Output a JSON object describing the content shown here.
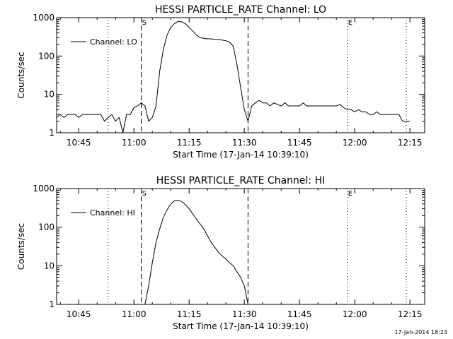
{
  "chart_data": [
    {
      "type": "line",
      "title": "HESSI PARTICLE_RATE Channel: LO",
      "xlabel": "Start Time (17-Jan-14 10:39:10)",
      "ylabel": "Counts/sec",
      "yscale": "log",
      "xlim": [
        "10:39",
        "12:19"
      ],
      "ylim": [
        1,
        1000
      ],
      "x_ticks": [
        "10:45",
        "11:00",
        "11:15",
        "11:30",
        "11:45",
        "12:00",
        "12:15"
      ],
      "y_ticks": [
        "1",
        "10",
        "100",
        "1000"
      ],
      "legend": "upper-left",
      "markers": [
        {
          "time": "10:53",
          "style": "dotted",
          "label": ""
        },
        {
          "time": "11:02",
          "style": "dashed",
          "label": "S"
        },
        {
          "time": "11:31",
          "style": "dashed",
          "label": ""
        },
        {
          "time": "11:58",
          "style": "dotted",
          "label": "E"
        },
        {
          "time": "12:14",
          "style": "dotted",
          "label": ""
        }
      ],
      "series": [
        {
          "name": "Channel: LO",
          "x": [
            "10:39",
            "10:40",
            "10:41",
            "10:42",
            "10:43",
            "10:44",
            "10:45",
            "10:46",
            "10:47",
            "10:48",
            "10:49",
            "10:50",
            "10:51",
            "10:52",
            "10:53",
            "10:54",
            "10:55",
            "10:56",
            "10:57",
            "10:58",
            "10:59",
            "11:00",
            "11:01",
            "11:02",
            "11:03",
            "11:04",
            "11:05",
            "11:06",
            "11:07",
            "11:08",
            "11:09",
            "11:10",
            "11:11",
            "11:12",
            "11:13",
            "11:14",
            "11:15",
            "11:16",
            "11:17",
            "11:18",
            "11:19",
            "11:20",
            "11:21",
            "11:22",
            "11:23",
            "11:24",
            "11:25",
            "11:26",
            "11:27",
            "11:28",
            "11:29",
            "11:30",
            "11:31",
            "11:32",
            "11:33",
            "11:34",
            "11:35",
            "11:36",
            "11:37",
            "11:38",
            "11:39",
            "11:40",
            "11:41",
            "11:42",
            "11:43",
            "11:44",
            "11:45",
            "11:46",
            "11:47",
            "11:48",
            "11:49",
            "11:50",
            "11:51",
            "11:52",
            "11:53",
            "11:54",
            "11:55",
            "11:56",
            "11:57",
            "11:58",
            "11:59",
            "12:00",
            "12:01",
            "12:02",
            "12:03",
            "12:04",
            "12:05",
            "12:06",
            "12:07",
            "12:08",
            "12:09",
            "12:10",
            "12:11",
            "12:12",
            "12:13",
            "12:14",
            "12:15"
          ],
          "values": [
            2.5,
            3,
            2.5,
            3,
            3,
            3,
            2.5,
            3,
            3,
            3,
            3,
            3,
            3,
            2,
            2.5,
            3,
            2,
            2.5,
            1,
            3,
            3,
            4.5,
            5,
            6,
            5,
            2,
            2.5,
            5,
            40,
            150,
            350,
            550,
            700,
            800,
            780,
            700,
            550,
            450,
            350,
            300,
            290,
            280,
            280,
            270,
            270,
            260,
            250,
            230,
            180,
            60,
            15,
            4,
            2,
            5,
            6,
            7,
            6,
            6,
            5,
            6,
            5.5,
            5,
            6,
            5,
            5,
            5,
            5,
            6,
            5,
            5,
            5,
            5,
            5,
            5,
            5,
            5,
            5,
            5.5,
            4.5,
            4,
            4,
            3.5,
            4,
            3.5,
            3.5,
            3,
            3,
            3.5,
            3,
            3,
            3,
            3,
            3,
            3,
            2,
            2,
            2
          ]
        }
      ]
    },
    {
      "type": "line",
      "title": "HESSI PARTICLE_RATE Channel: HI",
      "xlabel": "Start Time (17-Jan-14 10:39:10)",
      "ylabel": "Counts/sec",
      "yscale": "log",
      "xlim": [
        "10:39",
        "12:19"
      ],
      "ylim": [
        1,
        1000
      ],
      "x_ticks": [
        "10:45",
        "11:00",
        "11:15",
        "11:30",
        "11:45",
        "12:00",
        "12:15"
      ],
      "y_ticks": [
        "1",
        "10",
        "100",
        "1000"
      ],
      "legend": "upper-left",
      "markers": [
        {
          "time": "10:53",
          "style": "dotted",
          "label": ""
        },
        {
          "time": "11:02",
          "style": "dashed",
          "label": "S"
        },
        {
          "time": "11:31",
          "style": "dashed",
          "label": ""
        },
        {
          "time": "11:58",
          "style": "dotted",
          "label": "E"
        },
        {
          "time": "12:14",
          "style": "dotted",
          "label": ""
        }
      ],
      "series": [
        {
          "name": "Channel: HI",
          "x": [
            "11:03",
            "11:04",
            "11:05",
            "11:06",
            "11:07",
            "11:08",
            "11:09",
            "11:10",
            "11:11",
            "11:12",
            "11:13",
            "11:14",
            "11:15",
            "11:16",
            "11:17",
            "11:18",
            "11:19",
            "11:20",
            "11:21",
            "11:22",
            "11:23",
            "11:24",
            "11:25",
            "11:26",
            "11:27",
            "11:28",
            "11:29",
            "11:30",
            "11:31"
          ],
          "values": [
            1,
            3,
            12,
            40,
            90,
            180,
            280,
            400,
            480,
            500,
            460,
            380,
            300,
            220,
            160,
            120,
            90,
            60,
            40,
            30,
            22,
            18,
            15,
            12,
            10,
            7,
            5,
            3,
            1
          ]
        }
      ]
    }
  ],
  "stamp": "17-Jan-2014 18:23"
}
